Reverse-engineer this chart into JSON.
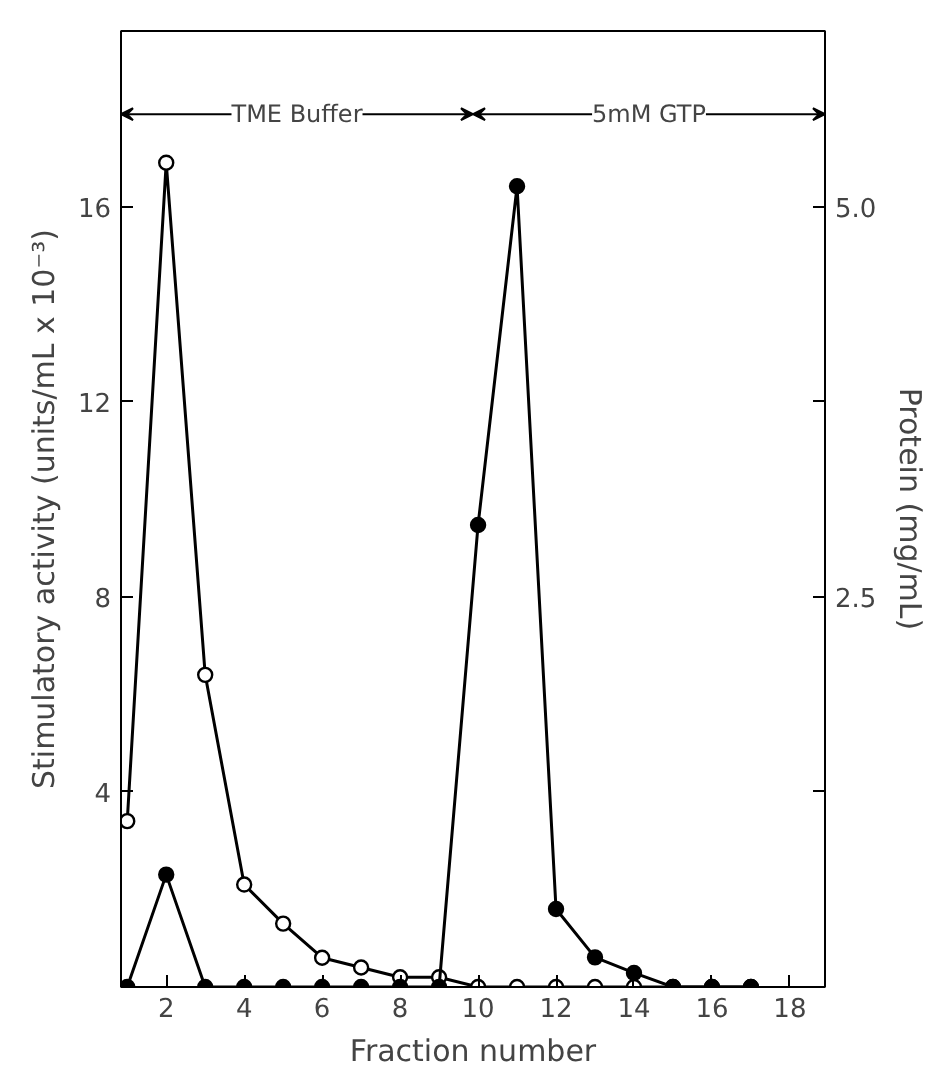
{
  "chart_data": {
    "type": "line",
    "xlabel": "Fraction number",
    "ylabel": "Stimulatory activity (units/mL x 10⁻³)",
    "y2label": "Protein (mg/mL)",
    "x": [
      1,
      2,
      3,
      4,
      5,
      6,
      7,
      8,
      9,
      10,
      11,
      12,
      13,
      14,
      15,
      16,
      17
    ],
    "series": [
      {
        "color": "#000000",
        "values": [
          3.4,
          16.9,
          6.4,
          2.1,
          1.3,
          0.6,
          0.4,
          0.2,
          0.2,
          0,
          0,
          0,
          0,
          0,
          0,
          0,
          0
        ]
      },
      {
        "color": "#000000",
        "axis": "y2",
        "values": [
          0,
          0.72,
          0,
          0,
          0,
          0,
          0,
          0,
          0,
          2.96,
          5.13,
          0.5,
          0.19,
          0.09,
          0,
          0,
          0
        ]
      }
    ],
    "marker": "circle",
    "line_style": "solid",
    "xlim": [
      0.84,
      18.9
    ],
    "xticks": [
      2,
      4,
      6,
      8,
      10,
      12,
      14,
      16,
      18
    ],
    "ylim": [
      0,
      19.6
    ],
    "yticks": [
      4,
      8,
      12,
      16
    ],
    "y2lim": [
      0,
      6.125
    ],
    "y2ticks": [
      {
        "value": 1.25,
        "label": null
      },
      {
        "value": 2.5,
        "label": "2.5"
      },
      {
        "value": 3.75,
        "label": null
      },
      {
        "value": 5.0,
        "label": "5.0"
      }
    ],
    "annotations": [
      "TME Buffer",
      "5mM GTP"
    ]
  }
}
